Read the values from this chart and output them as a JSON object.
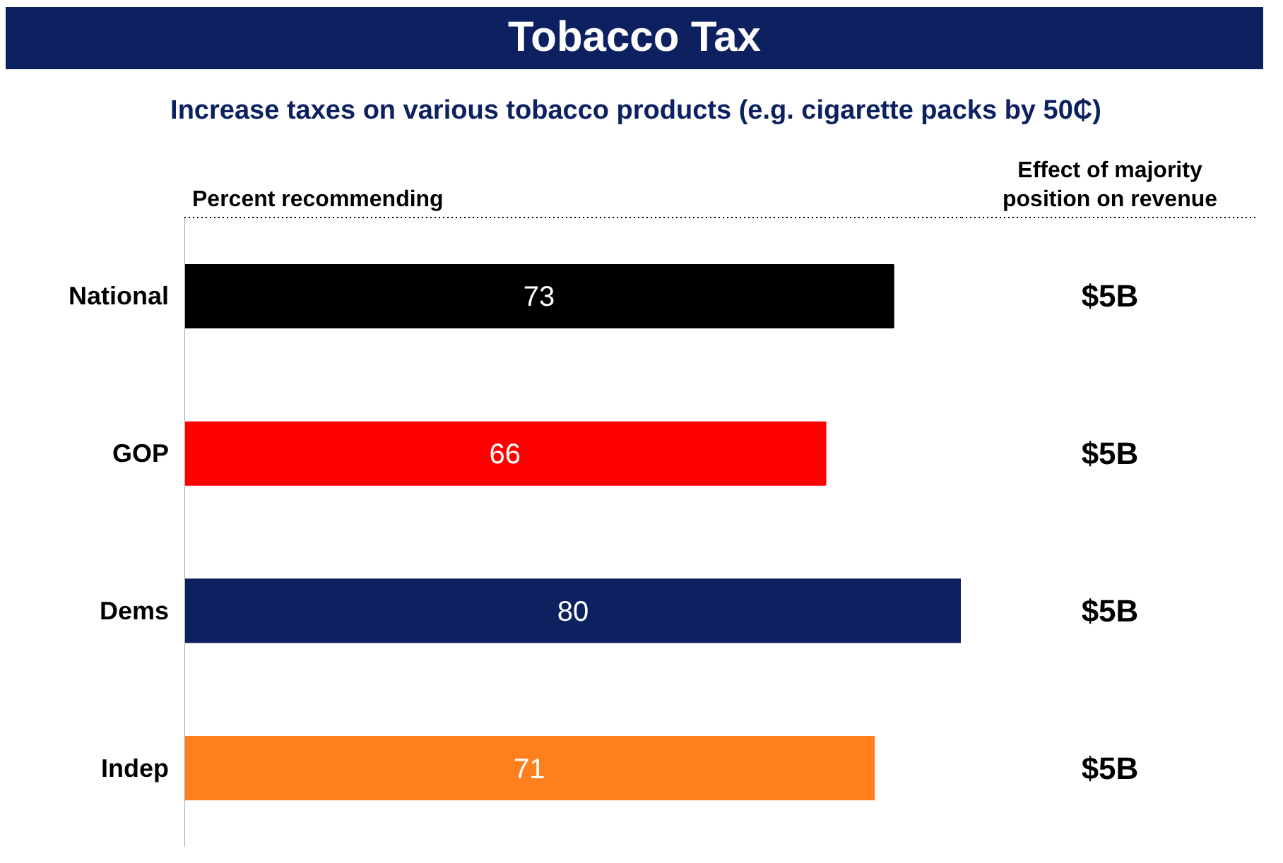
{
  "chart_data": {
    "type": "bar",
    "orientation": "horizontal",
    "title": "Tobacco Tax",
    "subtitle": "Increase taxes on various tobacco products (e.g. cigarette packs by 50₵)",
    "xlabel": "Percent recommending",
    "categories": [
      "National",
      "GOP",
      "Dems",
      "Indep"
    ],
    "values": [
      73,
      66,
      80,
      71
    ],
    "colors": [
      "#000000",
      "#ff0000",
      "#0d2161",
      "#ff7f1f"
    ],
    "xlim": [
      0,
      80
    ],
    "data_labels": true,
    "tick_labels": "y",
    "grid": false,
    "annotations": [
      "Effect of majority position on revenue",
      "$5B",
      "$5B",
      "$5B",
      "$5B"
    ]
  }
}
